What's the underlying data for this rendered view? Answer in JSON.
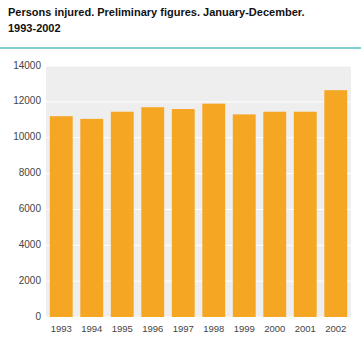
{
  "chart_data": {
    "type": "bar",
    "title": "Persons injured. Preliminary figures. January-December.",
    "subtitle": "1993-2002",
    "categories": [
      "1993",
      "1994",
      "1995",
      "1996",
      "1997",
      "1998",
      "1999",
      "2000",
      "2001",
      "2002"
    ],
    "values": [
      11200,
      11050,
      11450,
      11700,
      11600,
      11900,
      11300,
      11450,
      11450,
      12650
    ],
    "color": "#F5A623",
    "ylim": [
      0,
      14000
    ],
    "yticks": [
      0,
      2000,
      4000,
      6000,
      8000,
      10000,
      12000,
      14000
    ],
    "grid": true
  }
}
